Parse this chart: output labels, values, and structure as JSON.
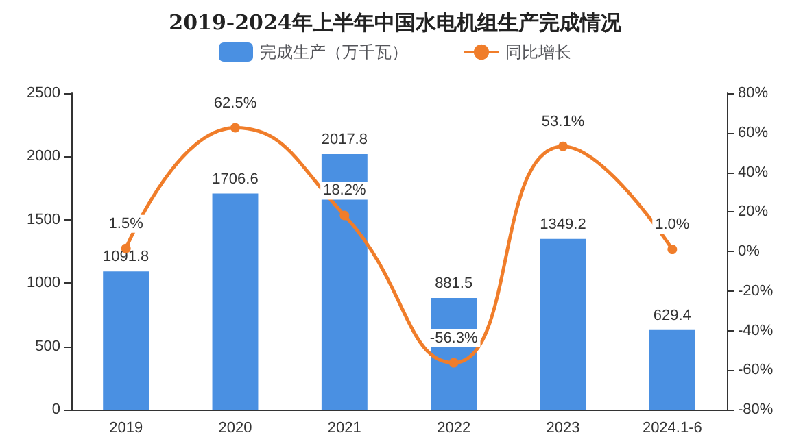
{
  "chart_data": {
    "type": "bar",
    "title": "2019-2024年上半年中国水电机组生产完成情况",
    "categories": [
      "2019",
      "2020",
      "2021",
      "2022",
      "2023",
      "2024.1-6"
    ],
    "series": [
      {
        "name": "完成生产（万千瓦）",
        "color": "#4a90e2",
        "values": [
          1091.8,
          1706.6,
          2017.8,
          881.5,
          1349.2,
          629.4
        ],
        "value_labels": [
          "1091.8",
          "1706.6",
          "2017.8",
          "881.5",
          "1349.2",
          "629.4"
        ]
      },
      {
        "name": "同比增长",
        "type": "line",
        "axis": "y2",
        "color": "#f07d2a",
        "values": [
          1.5,
          62.5,
          18.2,
          -56.3,
          53.1,
          1.0
        ],
        "value_labels": [
          "1.5%",
          "62.5%",
          "18.2%",
          "-56.3%",
          "53.1%",
          "1.0%"
        ]
      }
    ],
    "ylim": [
      0,
      2500
    ],
    "yticks": [
      0,
      500,
      1000,
      1500,
      2000,
      2500
    ],
    "y2lim": [
      -80,
      80
    ],
    "y2ticks": [
      {
        "value": -80,
        "label": "-80%"
      },
      {
        "value": -60,
        "label": "-60%"
      },
      {
        "value": -40,
        "label": "-40%"
      },
      {
        "value": -20,
        "label": "-20%"
      },
      {
        "value": 0,
        "label": "0%"
      },
      {
        "value": 20,
        "label": "20%"
      },
      {
        "value": 40,
        "label": "40%"
      },
      {
        "value": 60,
        "label": "60%"
      },
      {
        "value": 80,
        "label": "80%"
      }
    ],
    "legend": "top",
    "grid": false,
    "marker": "circle",
    "line_style": "solid"
  }
}
